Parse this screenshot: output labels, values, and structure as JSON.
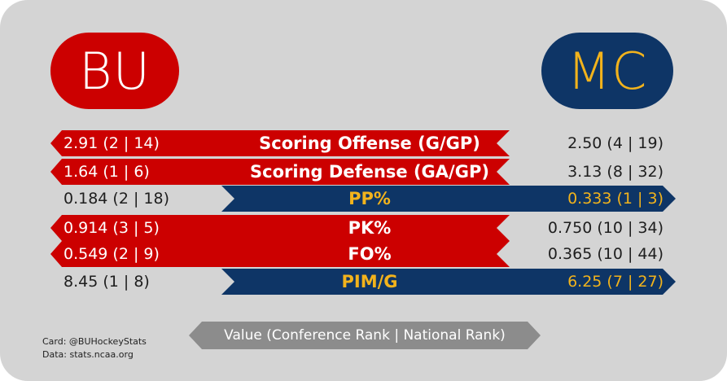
{
  "teams": {
    "left": {
      "abbr": "BU",
      "color": "#cc0000",
      "text_color": "#ffffff"
    },
    "right": {
      "abbr": "MC",
      "color": "#0e3566",
      "text_color": "#f2b31c"
    }
  },
  "stats": [
    {
      "label": "Scoring Offense (G/GP)",
      "left": "2.91 (2 | 14)",
      "right": "2.50 (4 | 19)",
      "leader": "left"
    },
    {
      "label": "Scoring Defense (GA/GP)",
      "left": "1.64 (1 | 6)",
      "right": "3.13 (8 | 32)",
      "leader": "left"
    },
    {
      "label": "PP%",
      "left": "0.184 (2 | 18)",
      "right": "0.333 (1 | 3)",
      "leader": "right"
    },
    {
      "label": "PK%",
      "left": "0.914 (3 | 5)",
      "right": "0.750 (10 | 34)",
      "leader": "left"
    },
    {
      "label": "FO%",
      "left": "0.549 (2 | 9)",
      "right": "0.365 (10 | 44)",
      "leader": "left"
    },
    {
      "label": "PIM/G",
      "left": "8.45 (1 | 8)",
      "right": "6.25 (7 | 27)",
      "leader": "right"
    }
  ],
  "legend": "Value (Conference Rank | National Rank)",
  "credits": {
    "card": "Card: @BUHockeyStats",
    "data": "Data: stats.ncaa.org"
  }
}
